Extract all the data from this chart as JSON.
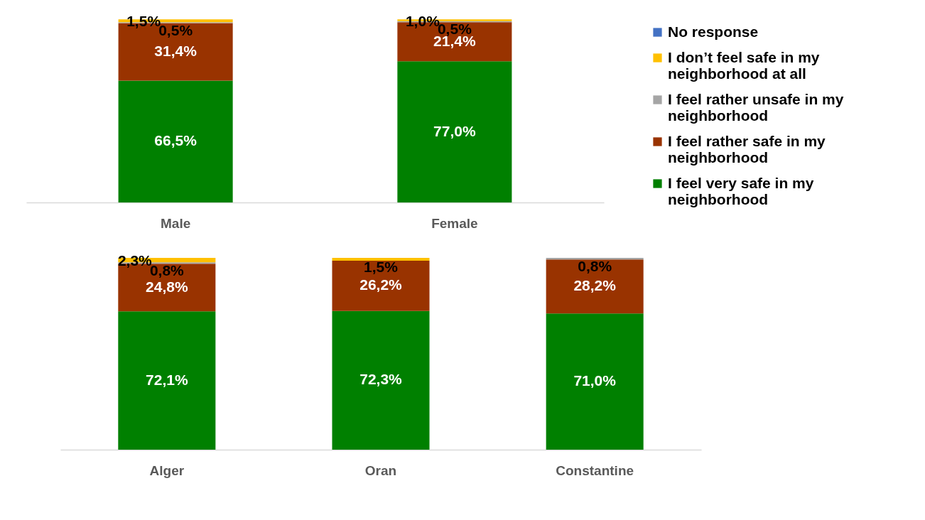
{
  "chart_data": [
    {
      "type": "bar",
      "stacked": true,
      "categories": [
        "Male",
        "Female"
      ],
      "ylim": [
        0,
        100
      ],
      "tick_labels": "x",
      "legend": "right",
      "grid": false,
      "series": [
        {
          "name": "I feel very safe in my neighborhood",
          "color": "#008000",
          "values": [
            66.5,
            77.0
          ],
          "value_labels": [
            "66,5%",
            "77,0%"
          ]
        },
        {
          "name": "I feel rather safe in my neighborhood",
          "color": "#993300",
          "values": [
            31.4,
            21.4
          ],
          "value_labels": [
            "31,4%",
            "21,4%"
          ]
        },
        {
          "name": "I feel rather unsafe in my neighborhood",
          "color": "#a5a5a5",
          "values": [
            0.5,
            0.5
          ],
          "value_labels": [
            "0,5%",
            "0,5%"
          ]
        },
        {
          "name": "I don’t feel safe in my neighborhood at all",
          "color": "#ffc000",
          "values": [
            1.5,
            1.0
          ],
          "value_labels": [
            "1,5%",
            "1,0%"
          ]
        },
        {
          "name": "No response",
          "color": "#4472c4",
          "values": [
            null,
            null
          ],
          "value_labels": [
            null,
            null
          ]
        }
      ]
    },
    {
      "type": "bar",
      "stacked": true,
      "categories": [
        "Alger",
        "Oran",
        "Constantine"
      ],
      "ylim": [
        0,
        100
      ],
      "tick_labels": "x",
      "legend": false,
      "grid": false,
      "series": [
        {
          "color": "#008000",
          "values": [
            72.1,
            72.3,
            71.0
          ],
          "value_labels": [
            "72,1%",
            "72,3%",
            "71,0%"
          ]
        },
        {
          "color": "#993300",
          "values": [
            24.8,
            26.2,
            28.2
          ],
          "value_labels": [
            "24,8%",
            "26,2%",
            "28,2%"
          ]
        },
        {
          "color": "#a5a5a5",
          "values": [
            0.8,
            null,
            0.8
          ],
          "value_labels": [
            "0,8%",
            null,
            "0,8%"
          ]
        },
        {
          "color": "#ffc000",
          "values": [
            2.3,
            1.5,
            null
          ],
          "value_labels": [
            "2,3%",
            "1,5%",
            null
          ]
        },
        {
          "color": "#4472c4",
          "values": [
            null,
            null,
            null
          ],
          "value_labels": [
            null,
            null,
            null
          ]
        }
      ]
    }
  ]
}
